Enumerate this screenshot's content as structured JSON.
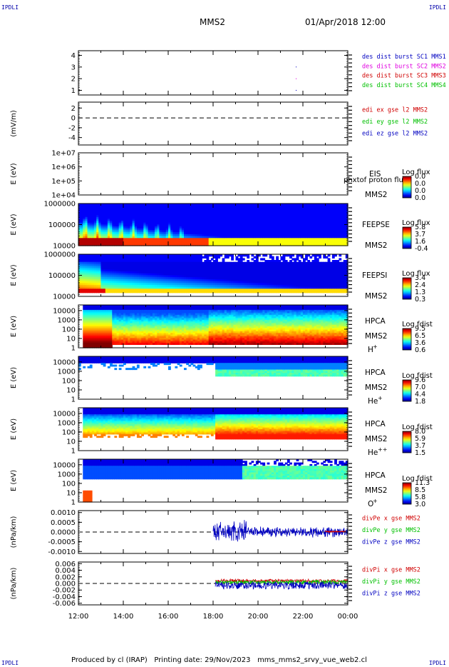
{
  "header": {
    "logo_left": "IPDLI",
    "logo_right": "IPDLI",
    "spacecraft": "MMS2",
    "date": "01/Apr/2018 12:00"
  },
  "footer": {
    "produced_by": "Produced by cl (IRAP)",
    "printing_date": "Printing date: 29/Nov/2023",
    "file": "mms_mms2_srvy_vue_web2.cl"
  },
  "chart_data": {
    "type": "heatmap",
    "x_ticks": [
      "12:00",
      "14:00",
      "16:00",
      "18:00",
      "20:00",
      "22:00",
      "00:00"
    ],
    "x_range": [
      "12:00",
      "00:00"
    ],
    "colors": {
      "red": "#d00000",
      "magenta": "#e000e0",
      "green": "#00c000",
      "blue": "#0000c0"
    },
    "panels": [
      {
        "id": "dist",
        "ylabel": "",
        "yticks": [
          "4",
          "3",
          "2",
          "1"
        ],
        "ylim": [
          0.6,
          4.4
        ],
        "legend": [
          {
            "text": "des dist burst SC1 MMS1",
            "color": "#0000c0"
          },
          {
            "text": "des dist burst SC2 MMS2",
            "color": "#e000e0"
          },
          {
            "text": "des dist burst SC3 MMS3",
            "color": "#d00000"
          },
          {
            "text": "des dist burst SC4 MMS4",
            "color": "#00c000"
          }
        ]
      },
      {
        "id": "edi",
        "ylabel": "(mV/m)",
        "yticks": [
          "2",
          "0",
          "-2",
          "-4"
        ],
        "ylim": [
          -5.5,
          3.2
        ],
        "legend": [
          {
            "text": "edi ex gse l2 MMS2",
            "color": "#d00000"
          },
          {
            "text": "edi ey gse l2 MMS2",
            "color": "#00c000"
          },
          {
            "text": "edi ez gse l2 MMS2",
            "color": "#0000c0"
          }
        ]
      },
      {
        "id": "eis",
        "ylabel": "E (eV)",
        "yticks": [
          "1e+07",
          "1e+06",
          "1e+05",
          "1e+04"
        ],
        "ylim": [
          10000,
          10000000
        ],
        "labels": [
          "EIS",
          "MMS2"
        ],
        "overlay": "phxtof proton flux",
        "colorbar": {
          "title": "Log flux",
          "values": [
            "0.0",
            "0.0",
            "0.0",
            "0.0"
          ]
        }
      },
      {
        "id": "feepse",
        "ylabel": "E (eV)",
        "yticks": [
          "1000000",
          "100000",
          "10000"
        ],
        "ylim": [
          10000,
          1000000
        ],
        "labels": [
          "FEEPSE",
          "MMS2"
        ],
        "colorbar": {
          "title": "Log flux",
          "values": [
            "5.8",
            "3.7",
            "1.6",
            "-0.4"
          ]
        }
      },
      {
        "id": "feepsi",
        "ylabel": "E (eV)",
        "yticks": [
          "1000000",
          "100000",
          "10000"
        ],
        "ylim": [
          10000,
          1000000
        ],
        "labels": [
          "FEEPSI",
          "MMS2"
        ],
        "colorbar": {
          "title": "Log flux",
          "values": [
            "3.4",
            "2.4",
            "1.3",
            "0.3"
          ]
        }
      },
      {
        "id": "hpca_h",
        "ylabel": "E (eV)",
        "yticks": [
          "10000",
          "1000",
          "100",
          "10",
          "1"
        ],
        "ylim": [
          1,
          40000
        ],
        "labels": [
          "HPCA",
          "MMS2"
        ],
        "species": "H",
        "charge": "+",
        "colorbar": {
          "title": "Log fdist",
          "values": [
            "9.5",
            "6.5",
            "3.6",
            "0.6"
          ]
        }
      },
      {
        "id": "hpca_he",
        "ylabel": "E (eV)",
        "yticks": [
          "10000",
          "1000",
          "100",
          "10",
          "1"
        ],
        "ylim": [
          1,
          40000
        ],
        "labels": [
          "HPCA",
          "MMS2"
        ],
        "species": "He",
        "charge": "+",
        "colorbar": {
          "title": "Log fdist",
          "values": [
            "9.6",
            "7.0",
            "4.4",
            "1.8"
          ]
        }
      },
      {
        "id": "hpca_hepp",
        "ylabel": "E (eV)",
        "yticks": [
          "10000",
          "1000",
          "100",
          "10",
          "1"
        ],
        "ylim": [
          1,
          40000
        ],
        "labels": [
          "HPCA",
          "MMS2"
        ],
        "species": "He",
        "charge": "++",
        "colorbar": {
          "title": "Log fdist",
          "values": [
            "8.0",
            "5.9",
            "3.7",
            "1.5"
          ]
        }
      },
      {
        "id": "hpca_o",
        "ylabel": "E (eV)",
        "yticks": [
          "10000",
          "1000",
          "100",
          "10",
          "1"
        ],
        "ylim": [
          1,
          40000
        ],
        "labels": [
          "HPCA",
          "MMS2"
        ],
        "species": "O",
        "charge": "+",
        "colorbar": {
          "title": "Log fdist",
          "values": [
            "11.3",
            "8.5",
            "5.8",
            "3.0"
          ]
        }
      },
      {
        "id": "divpe",
        "ylabel": "(nPa/km)",
        "yticks": [
          "0.0010",
          "0.0005",
          "0.0000",
          "-0.0005",
          "-0.0010"
        ],
        "ylim": [
          -0.0011,
          0.0011
        ],
        "legend": [
          {
            "text": "divPe x gse MMS2",
            "color": "#d00000"
          },
          {
            "text": "divPe y gse MMS2",
            "color": "#00c000"
          },
          {
            "text": "divPe z gse MMS2",
            "color": "#0000c0"
          }
        ]
      },
      {
        "id": "divpi",
        "ylabel": "(nPa/km)",
        "yticks": [
          "0.006",
          "0.004",
          "0.002",
          "0.000",
          "-0.002",
          "-0.004",
          "-0.006"
        ],
        "ylim": [
          -0.0065,
          0.0065
        ],
        "legend": [
          {
            "text": "divPi x gse MMS2",
            "color": "#d00000"
          },
          {
            "text": "divPi y gse MMS2",
            "color": "#00c000"
          },
          {
            "text": "divPi z gse MMS2",
            "color": "#0000c0"
          }
        ]
      }
    ]
  }
}
